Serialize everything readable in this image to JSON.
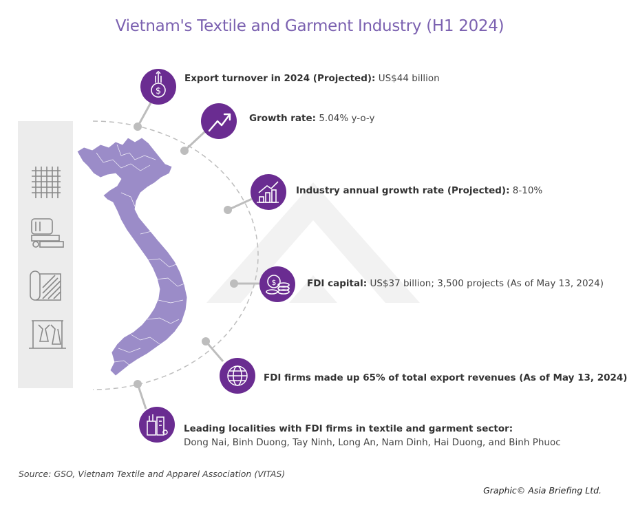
{
  "title": "Vietnam's Textile and Garment Industry (H1 2024)",
  "items": [
    {
      "label": "Export turnover in 2024 (Projected):",
      "value": "US$44 billion",
      "icon": "money-bag-icon"
    },
    {
      "label": "Growth rate:",
      "value": "5.04% y-o-y",
      "icon": "trend-up-icon"
    },
    {
      "label": "Industry annual growth rate (Projected):",
      "value": "8-10%",
      "icon": "bar-chart-icon"
    },
    {
      "label": "FDI capital:",
      "value": "US$37 billion; 3,500 projects (As of May 13, 2024)",
      "icon": "coins-icon"
    },
    {
      "label": "FDI firms made up 65% of total export revenues (As of May 13, 2024)",
      "value": "",
      "icon": "globe-exchange-icon"
    },
    {
      "label": "Leading localities with FDI firms in textile and garment sector:",
      "value": "Dong Nai, Binh Duong, Tay Ninh, Long An, Nam Dinh, Hai Duong, and Binh Phuoc",
      "icon": "factory-icon"
    }
  ],
  "side_icons": [
    "fabric-weave-icon",
    "textile-machine-icon",
    "fabric-roll-icon",
    "garment-rack-icon"
  ],
  "source": "Source: GSO, Vietnam Textile and Apparel Association (VITAS)",
  "credit": "Graphic© Asia Briefing Ltd.",
  "colors": {
    "accent": "#6a2c91",
    "title": "#7b61b0",
    "map": "#9b8cc8",
    "connector": "#b5b5b5",
    "panel": "#ececec"
  }
}
